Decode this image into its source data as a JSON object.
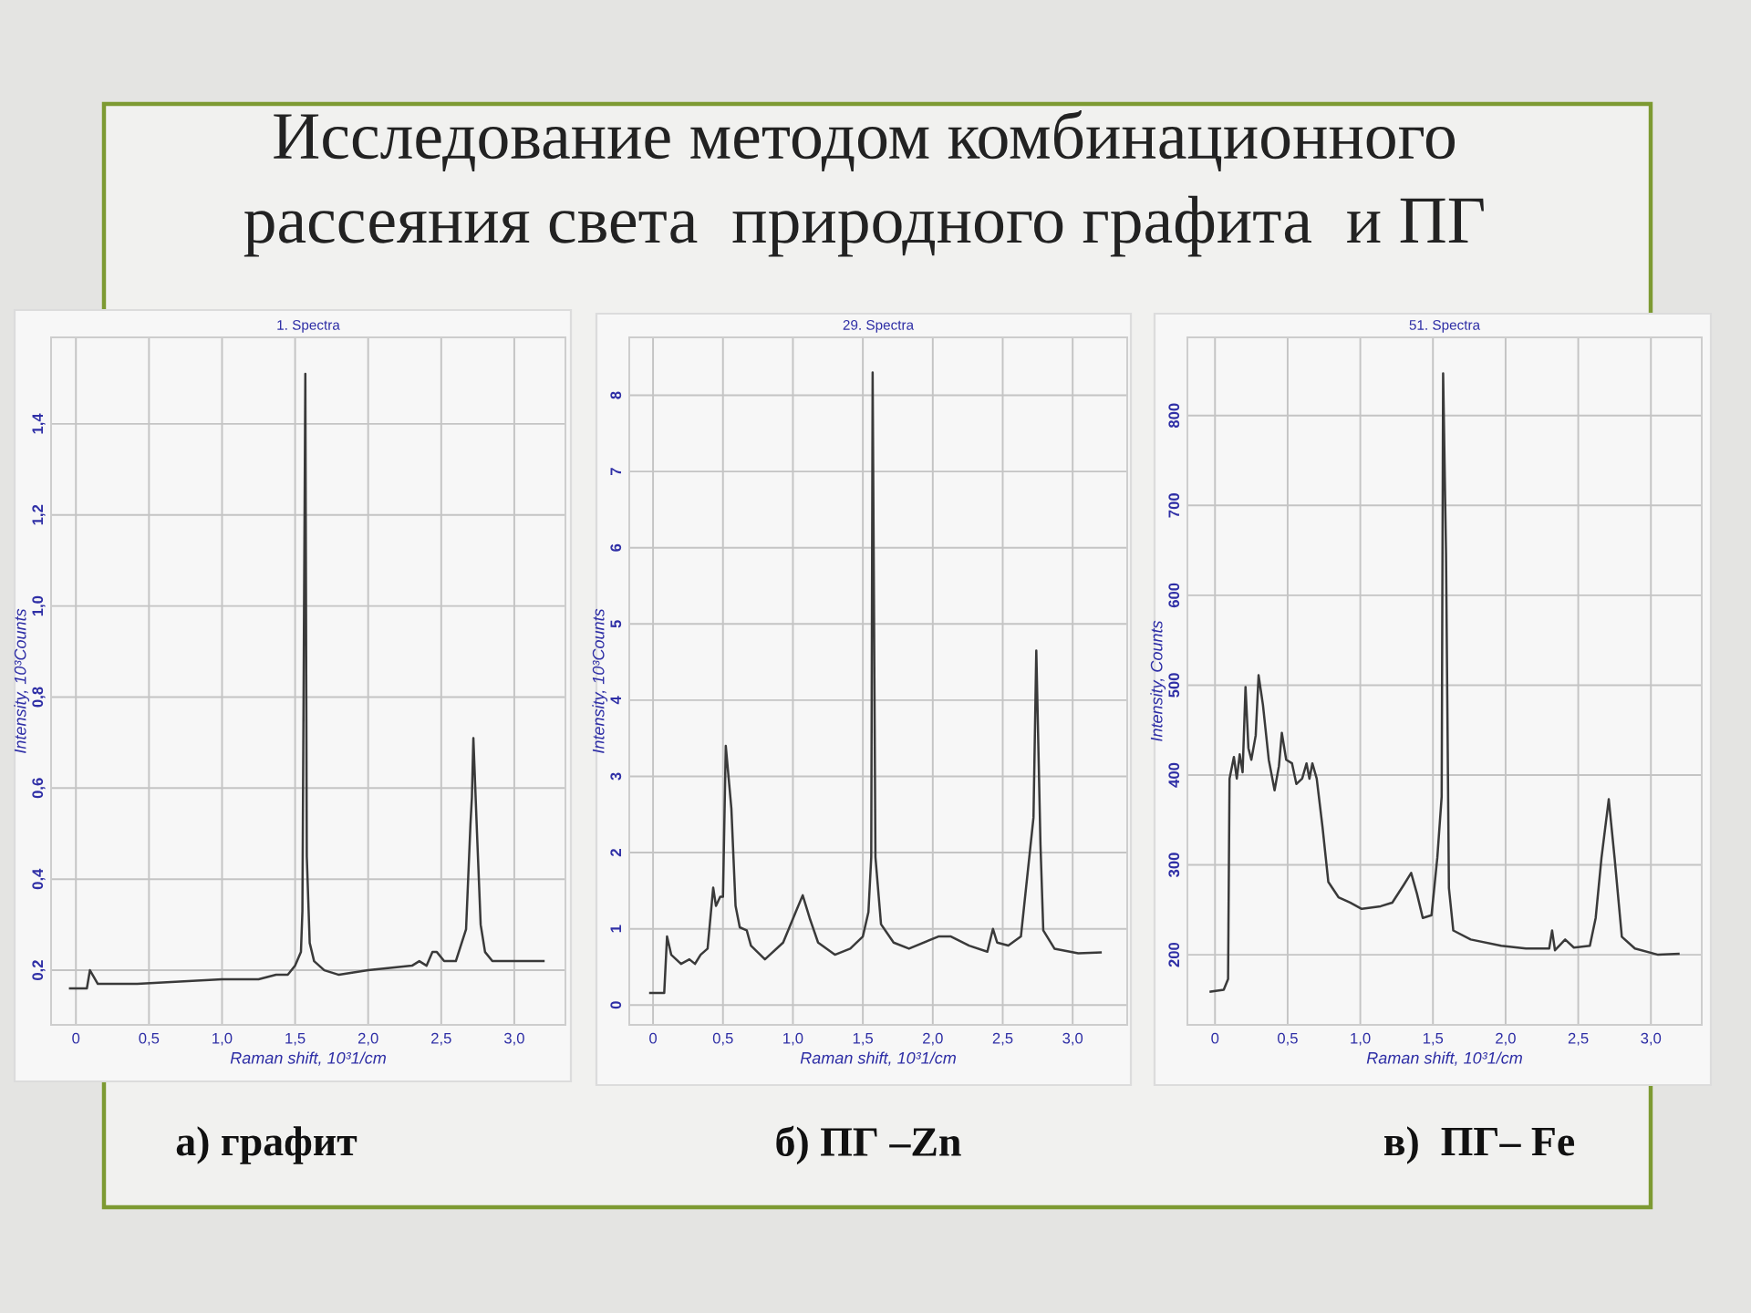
{
  "chart_data": [
    {
      "type": "line",
      "title": "1. Spectra",
      "xlabel": "Raman shift, 10³1/cm",
      "ylabel": "Intensity, 10³Counts",
      "annotations": [
        "Исследование методом комбинационного\nрассеяния света  природного графита  и ПГ",
        "а) графит"
      ],
      "x": [
        -0.04,
        0.075,
        0.096,
        0.15,
        0.42,
        1.0,
        1.25,
        1.37,
        1.45,
        1.5,
        1.54,
        1.55,
        1.57,
        1.58,
        1.6,
        1.63,
        1.7,
        1.8,
        2.0,
        2.3,
        2.35,
        2.4,
        2.44,
        2.47,
        2.52,
        2.6,
        2.67,
        2.7,
        2.71,
        2.72,
        2.745,
        2.77,
        2.8,
        2.85,
        3.0,
        3.2
      ],
      "series": [
        {
          "color": "#3a3a3a",
          "values": [
            0.16,
            0.16,
            0.2,
            0.17,
            0.17,
            0.18,
            0.18,
            0.19,
            0.19,
            0.21,
            0.24,
            0.33,
            1.51,
            0.45,
            0.26,
            0.22,
            0.2,
            0.19,
            0.2,
            0.21,
            0.22,
            0.21,
            0.24,
            0.24,
            0.22,
            0.22,
            0.29,
            0.52,
            0.58,
            0.71,
            0.5,
            0.3,
            0.24,
            0.22,
            0.22,
            0.22
          ]
        }
      ],
      "xlim": [
        -0.17,
        3.35
      ],
      "ylim": [
        0.08,
        1.59
      ],
      "xticks": [
        0,
        {
          "value": 0.5,
          "label": "0,5"
        },
        {
          "value": 1.0,
          "label": "1,0"
        },
        {
          "value": 1.5,
          "label": "1,5"
        },
        {
          "value": 2.0,
          "label": "2,0"
        },
        {
          "value": 2.5,
          "label": "2,5"
        },
        {
          "value": 3.0,
          "label": "3,0"
        }
      ],
      "yticks": [
        {
          "value": 0.2,
          "label": "0,2"
        },
        {
          "value": 0.4,
          "label": "0,4"
        },
        {
          "value": 0.6,
          "label": "0,6"
        },
        {
          "value": 0.8,
          "label": "0,8"
        },
        {
          "value": 1.0,
          "label": "1,0"
        },
        {
          "value": 1.2,
          "label": "1,2"
        },
        {
          "value": 1.4,
          "label": "1,4"
        }
      ],
      "grid": true
    },
    {
      "type": "line",
      "title": "29. Spectra",
      "xlabel": "Raman shift, 10³1/cm",
      "ylabel": "Intensity, 10³Counts",
      "annotations": [
        "б) ПГ –Zn"
      ],
      "x": [
        -0.02,
        0.08,
        0.1,
        0.13,
        0.2,
        0.26,
        0.3,
        0.34,
        0.39,
        0.43,
        0.45,
        0.48,
        0.5,
        0.52,
        0.56,
        0.59,
        0.62,
        0.67,
        0.7,
        0.8,
        0.93,
        1.02,
        1.07,
        1.12,
        1.18,
        1.3,
        1.41,
        1.5,
        1.54,
        1.56,
        1.57,
        1.59,
        1.63,
        1.72,
        1.83,
        2.04,
        2.13,
        2.26,
        2.39,
        2.43,
        2.46,
        2.54,
        2.63,
        2.69,
        2.72,
        2.74,
        2.77,
        2.79,
        2.87,
        3.04,
        3.2
      ],
      "series": [
        {
          "color": "#3a3a3a",
          "values": [
            0.16,
            0.16,
            0.9,
            0.66,
            0.54,
            0.6,
            0.54,
            0.66,
            0.74,
            1.54,
            1.3,
            1.42,
            1.42,
            3.4,
            2.58,
            1.3,
            1.02,
            0.98,
            0.78,
            0.6,
            0.82,
            1.22,
            1.44,
            1.14,
            0.82,
            0.66,
            0.74,
            0.9,
            1.22,
            1.94,
            8.3,
            1.94,
            1.06,
            0.82,
            0.74,
            0.9,
            0.9,
            0.78,
            0.7,
            1.0,
            0.82,
            0.78,
            0.9,
            1.94,
            2.46,
            4.65,
            2.1,
            0.98,
            0.74,
            0.68,
            0.69
          ]
        }
      ],
      "xlim": [
        -0.17,
        3.39
      ],
      "ylim": [
        -0.26,
        8.76
      ],
      "xticks": [
        0,
        {
          "value": 0.5,
          "label": "0,5"
        },
        {
          "value": 1.0,
          "label": "1,0"
        },
        {
          "value": 1.5,
          "label": "1,5"
        },
        {
          "value": 2.0,
          "label": "2,0"
        },
        {
          "value": 2.5,
          "label": "2,5"
        },
        {
          "value": 3.0,
          "label": "3,0"
        }
      ],
      "yticks": [
        0,
        1,
        2,
        3,
        4,
        5,
        6,
        7,
        8
      ],
      "grid": true
    },
    {
      "type": "line",
      "title": "51. Spectra",
      "xlabel": "Raman shift, 10³1/cm",
      "ylabel": "Intensity, Counts",
      "annotations": [
        "в)  ПГ– Fe"
      ],
      "x": [
        -0.03,
        0.06,
        0.09,
        0.1,
        0.13,
        0.15,
        0.17,
        0.19,
        0.21,
        0.23,
        0.25,
        0.28,
        0.3,
        0.33,
        0.37,
        0.41,
        0.44,
        0.46,
        0.49,
        0.53,
        0.56,
        0.6,
        0.63,
        0.65,
        0.67,
        0.7,
        0.74,
        0.78,
        0.85,
        0.93,
        1.01,
        1.14,
        1.22,
        1.3,
        1.35,
        1.39,
        1.43,
        1.49,
        1.53,
        1.56,
        1.57,
        1.59,
        1.61,
        1.64,
        1.76,
        1.97,
        2.14,
        2.3,
        2.32,
        2.34,
        2.41,
        2.47,
        2.58,
        2.62,
        2.66,
        2.71,
        2.75,
        2.8,
        2.89,
        3.05,
        3.19
      ],
      "series": [
        {
          "color": "#3a3a3a",
          "values": [
            159,
            161,
            173,
            396,
            420,
            396,
            423,
            403,
            498,
            430,
            417,
            444,
            511,
            478,
            417,
            383,
            410,
            447,
            417,
            413,
            390,
            396,
            413,
            396,
            413,
            396,
            342,
            281,
            264,
            258,
            251,
            254,
            258,
            278,
            291,
            268,
            241,
            244,
            308,
            376,
            847,
            647,
            274,
            227,
            217,
            210,
            207,
            207,
            227,
            205,
            217,
            208,
            210,
            241,
            308,
            373,
            308,
            220,
            207,
            200,
            201
          ]
        }
      ],
      "xlim": [
        -0.19,
        3.35
      ],
      "ylim": [
        122,
        887
      ],
      "xticks": [
        0,
        {
          "value": 0.5,
          "label": "0,5"
        },
        {
          "value": 1.0,
          "label": "1,0"
        },
        {
          "value": 1.5,
          "label": "1,5"
        },
        {
          "value": 2.0,
          "label": "2,0"
        },
        {
          "value": 2.5,
          "label": "2,5"
        },
        {
          "value": 3.0,
          "label": "3,0"
        }
      ],
      "yticks": [
        200,
        300,
        400,
        500,
        600,
        700,
        800
      ],
      "grid": true
    }
  ]
}
